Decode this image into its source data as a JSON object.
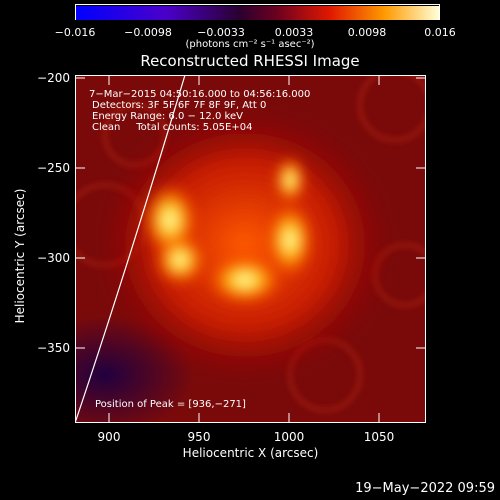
{
  "colorbar": {
    "ticks": [
      "−0.016",
      "−0.0098",
      "−0.0033",
      "0.0033",
      "0.0098",
      "0.016"
    ],
    "units": "(photons cm⁻² s⁻¹ asec⁻²)"
  },
  "title": "Reconstructed RHESSI Image",
  "info": {
    "line1": "7−Mar−2015 04:50:16.000 to 04:56:16.000",
    "line2": "Detectors: 3F 5F 6F 7F 8F 9F, Att 0",
    "line3": "Energy Range: 6.0 − 12.0 keV",
    "line4": "Clean     Total counts: 5.05E+04",
    "peak": "Position of Peak = [936,−271]"
  },
  "axes": {
    "xlabel": "Heliocentric X (arcsec)",
    "ylabel": "Heliocentric Y (arcsec)",
    "xticks": [
      "900",
      "950",
      "1000",
      "1050"
    ],
    "yticks": [
      "−200",
      "−250",
      "−300",
      "−350"
    ]
  },
  "footer": {
    "date": "19−May−2022 09:59"
  },
  "colors": {
    "background": "#000000",
    "limb": "#ffffff"
  }
}
